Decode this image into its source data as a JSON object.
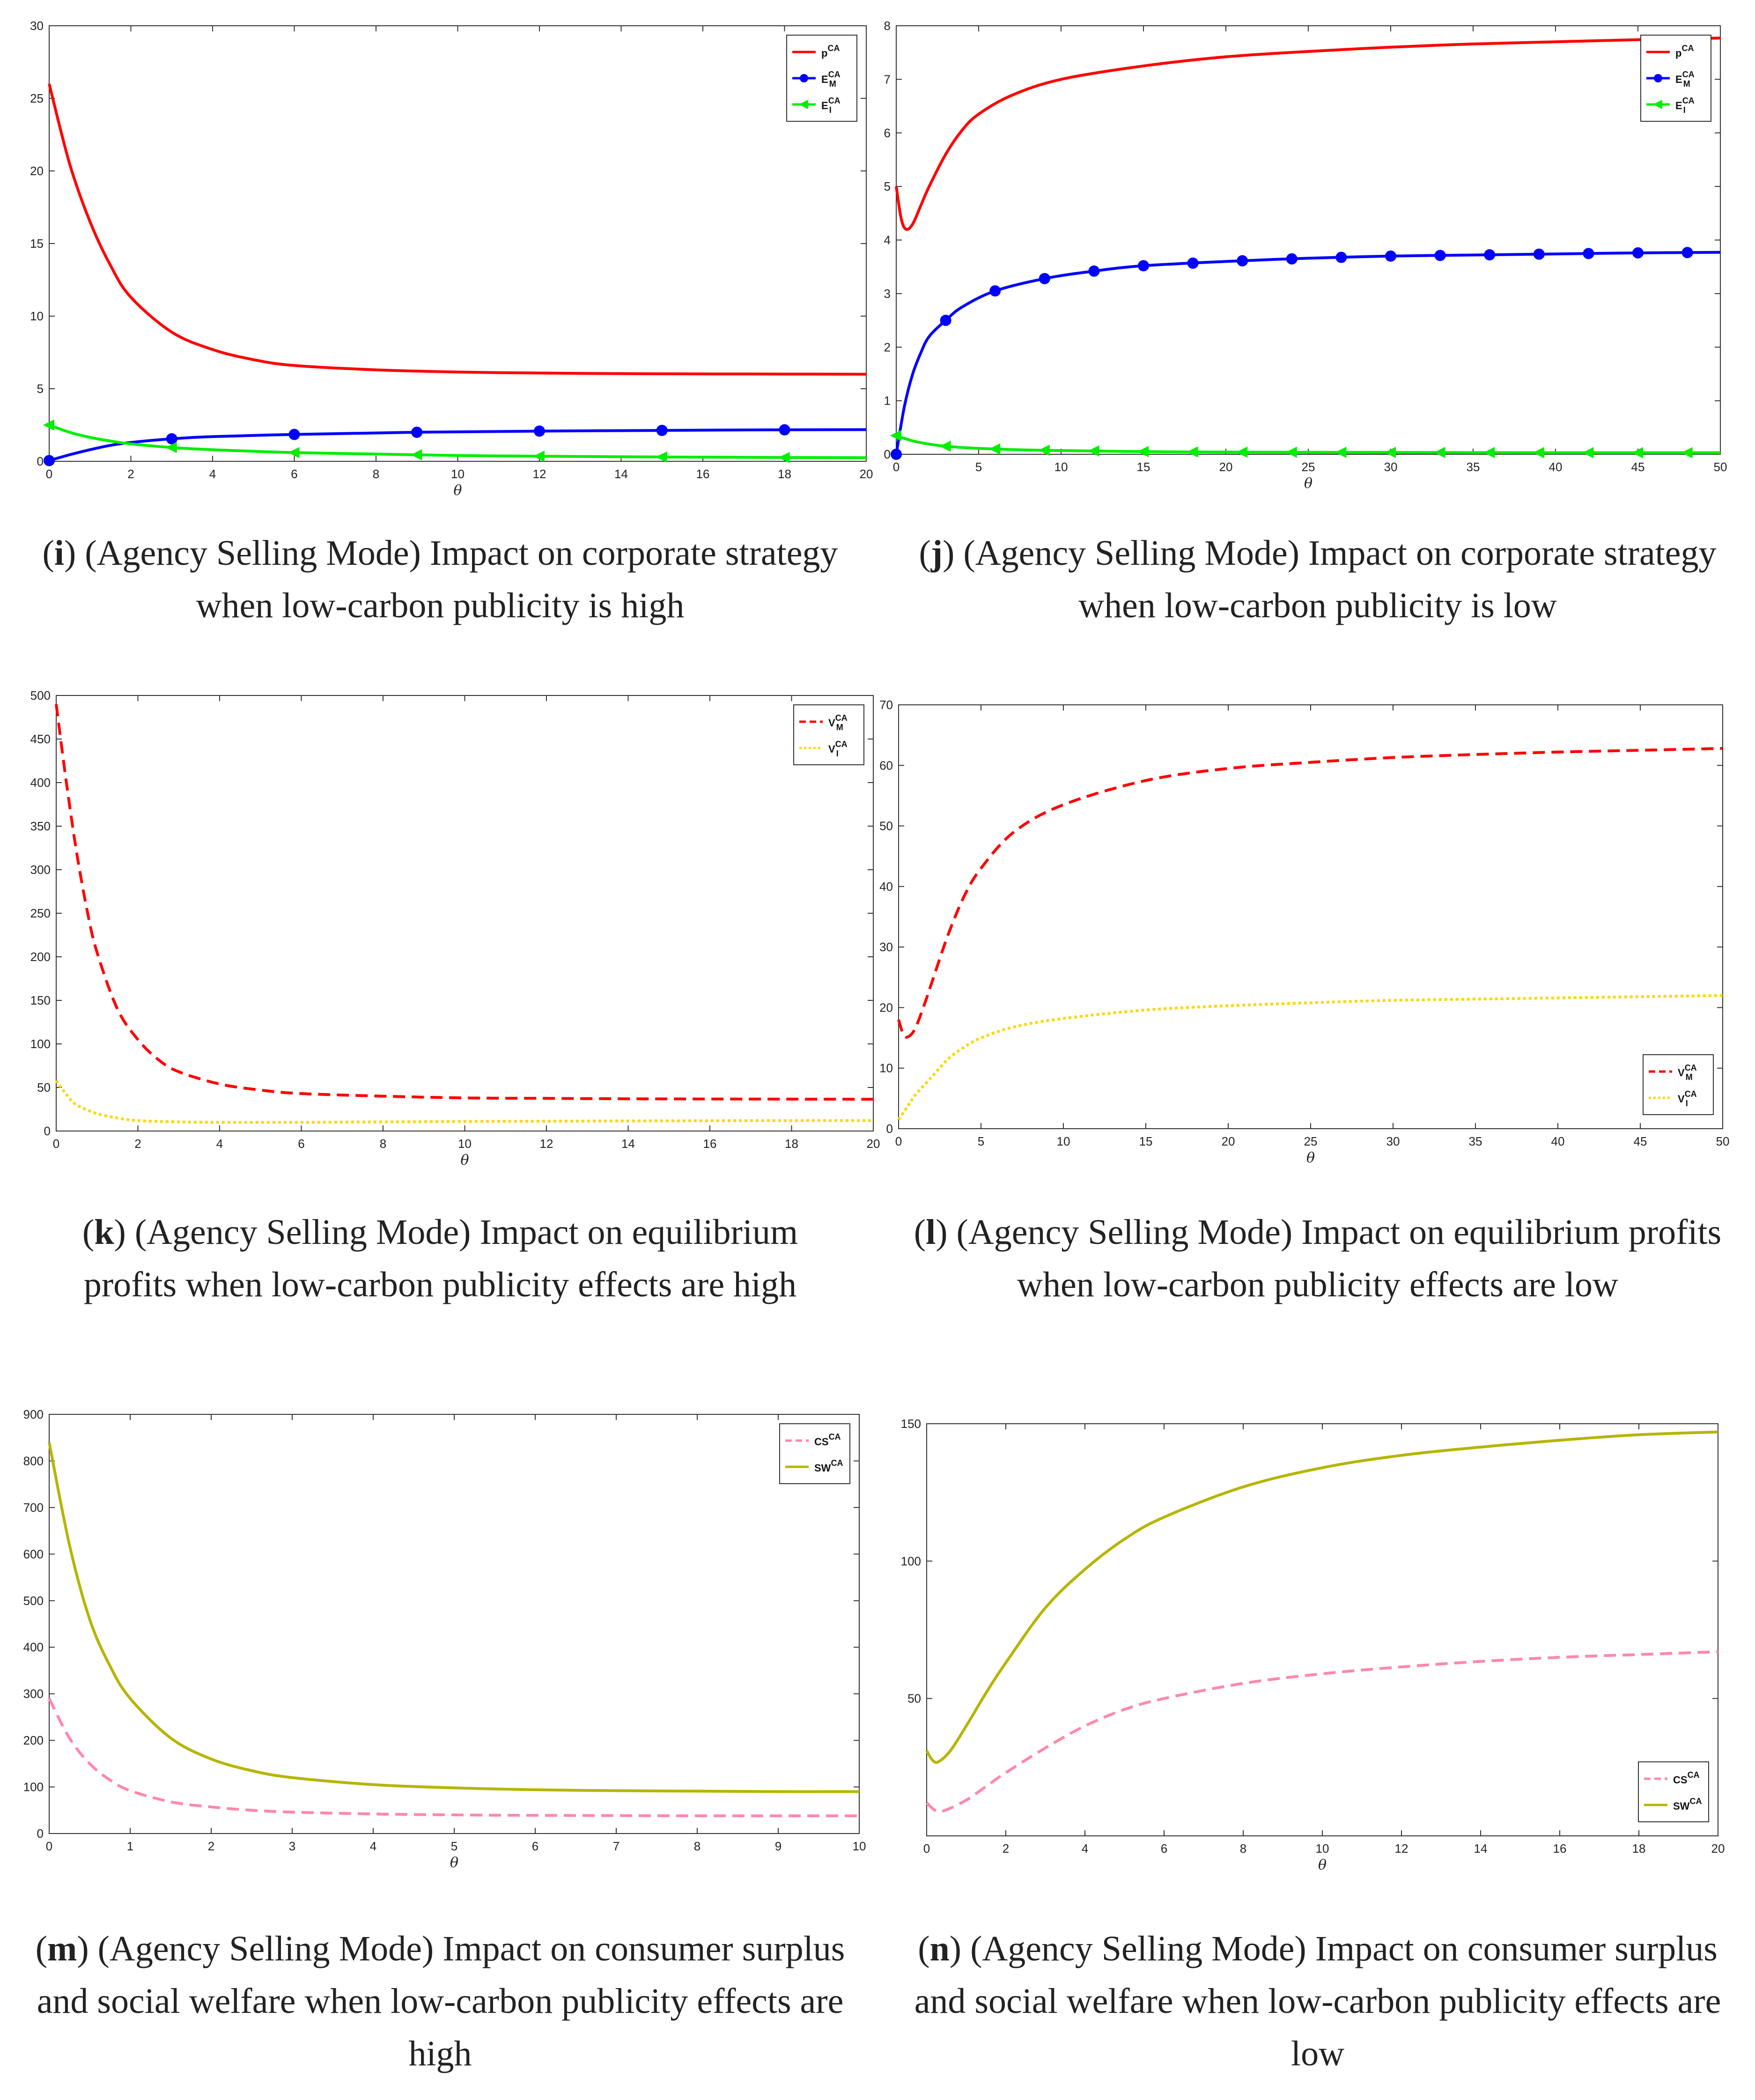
{
  "chart_data": [
    {
      "id": "i",
      "type": "line",
      "caption_letter": "i",
      "caption_text": "(Agency Selling Mode) Impact on corporate strategy when low-carbon publicity is high",
      "xlabel": "θ",
      "xlim": [
        0,
        20
      ],
      "ylim": [
        0,
        30
      ],
      "xticks": [
        0,
        2,
        4,
        6,
        8,
        10,
        12,
        14,
        16,
        18,
        20
      ],
      "yticks": [
        0,
        5,
        10,
        15,
        20,
        25,
        30
      ],
      "legend_position": "top-right",
      "series": [
        {
          "name": "p",
          "sup": "CA",
          "sub": "",
          "color": "#ff0000",
          "dash": "solid",
          "marker": "none",
          "x": [
            0,
            0.5,
            1,
            1.5,
            2,
            3,
            4,
            5,
            6,
            8,
            10,
            12,
            14,
            16,
            18,
            20
          ],
          "y": [
            26,
            20.5,
            16.5,
            13.5,
            11.3,
            8.9,
            7.7,
            7.0,
            6.6,
            6.3,
            6.15,
            6.08,
            6.04,
            6.02,
            6.01,
            6.0
          ]
        },
        {
          "name": "E",
          "sup": "CA",
          "sub": "M",
          "color": "#0000ff",
          "dash": "solid",
          "marker": "circle",
          "x": [
            0,
            0.5,
            1,
            1.5,
            2,
            3,
            4,
            6,
            8,
            9,
            10,
            12,
            15,
            18,
            20
          ],
          "y": [
            0.05,
            0.45,
            0.8,
            1.1,
            1.3,
            1.55,
            1.7,
            1.85,
            1.95,
            2.0,
            2.03,
            2.08,
            2.13,
            2.17,
            2.18
          ],
          "markers_x": [
            0,
            3,
            6,
            9,
            12,
            15,
            18
          ]
        },
        {
          "name": "E",
          "sup": "CA",
          "sub": "I",
          "color": "#00ee00",
          "dash": "solid",
          "marker": "triangle-left",
          "x": [
            0,
            0.5,
            1,
            1.5,
            2,
            3,
            4,
            6,
            8,
            10,
            12,
            15,
            18,
            20
          ],
          "y": [
            2.5,
            2.0,
            1.65,
            1.4,
            1.2,
            0.95,
            0.8,
            0.6,
            0.5,
            0.4,
            0.35,
            0.3,
            0.26,
            0.25
          ],
          "markers_x": [
            0,
            3,
            6,
            9,
            12,
            15,
            18
          ]
        }
      ]
    },
    {
      "id": "j",
      "type": "line",
      "caption_letter": "j",
      "caption_text": "(Agency Selling Mode) Impact on corporate strategy when low-carbon publicity is low",
      "xlabel": "θ",
      "xlim": [
        0,
        50
      ],
      "ylim": [
        0,
        8
      ],
      "xticks": [
        0,
        5,
        10,
        15,
        20,
        25,
        30,
        35,
        40,
        45,
        50
      ],
      "yticks": [
        0,
        1,
        2,
        3,
        4,
        5,
        6,
        7,
        8
      ],
      "legend_position": "top-right",
      "series": [
        {
          "name": "p",
          "sup": "CA",
          "sub": "",
          "color": "#ff0000",
          "dash": "solid",
          "marker": "none",
          "x": [
            0,
            0.3,
            0.6,
            1,
            1.5,
            2,
            3,
            4,
            5,
            7,
            10,
            15,
            20,
            25,
            30,
            35,
            40,
            45,
            50
          ],
          "y": [
            5.0,
            4.4,
            4.2,
            4.3,
            4.65,
            5.0,
            5.6,
            6.05,
            6.35,
            6.7,
            7.0,
            7.25,
            7.42,
            7.52,
            7.6,
            7.66,
            7.7,
            7.74,
            7.77
          ]
        },
        {
          "name": "E",
          "sup": "CA",
          "sub": "M",
          "color": "#0000ff",
          "dash": "solid",
          "marker": "circle",
          "x": [
            0,
            0.5,
            1,
            1.5,
            2,
            3,
            4,
            6,
            9,
            12,
            15,
            20,
            25,
            30,
            35,
            40,
            45,
            50
          ],
          "y": [
            0,
            0.9,
            1.5,
            1.9,
            2.2,
            2.5,
            2.75,
            3.05,
            3.28,
            3.42,
            3.52,
            3.6,
            3.66,
            3.7,
            3.72,
            3.74,
            3.76,
            3.77
          ],
          "markers_x": [
            0,
            3,
            6,
            9,
            12,
            15,
            18,
            21,
            24,
            27,
            30,
            33,
            36,
            39,
            42,
            45,
            48
          ]
        },
        {
          "name": "E",
          "sup": "CA",
          "sub": "I",
          "color": "#00ee00",
          "dash": "solid",
          "marker": "triangle-left",
          "x": [
            0,
            1,
            2,
            3,
            5,
            8,
            10,
            15,
            20,
            30,
            40,
            50
          ],
          "y": [
            0.35,
            0.25,
            0.19,
            0.15,
            0.11,
            0.08,
            0.07,
            0.05,
            0.04,
            0.035,
            0.03,
            0.03
          ],
          "markers_x": [
            0,
            3,
            6,
            9,
            12,
            15,
            18,
            21,
            24,
            27,
            30,
            33,
            36,
            39,
            42,
            45,
            48
          ]
        }
      ]
    },
    {
      "id": "k",
      "type": "line",
      "caption_letter": "k",
      "caption_text": "(Agency Selling Mode) Impact on equilibrium profits when low-carbon publicity effects are high",
      "xlabel": "θ",
      "xlim": [
        0,
        20
      ],
      "ylim": [
        0,
        500
      ],
      "xticks": [
        0,
        2,
        4,
        6,
        8,
        10,
        12,
        14,
        16,
        18,
        20
      ],
      "yticks": [
        0,
        50,
        100,
        150,
        200,
        250,
        300,
        350,
        400,
        450,
        500
      ],
      "legend_position": "top-right",
      "series": [
        {
          "name": "V",
          "sup": "CA",
          "sub": "M",
          "color": "#ff0000",
          "dash": "dashed",
          "marker": "none",
          "x": [
            0,
            0.25,
            0.5,
            0.75,
            1,
            1.5,
            2,
            2.5,
            3,
            4,
            5,
            6,
            8,
            10,
            12,
            14,
            16,
            18,
            20
          ],
          "y": [
            490,
            400,
            320,
            255,
            205,
            140,
            105,
            82,
            68,
            54,
            47,
            43,
            40,
            38,
            37.5,
            37,
            36.8,
            36.6,
            36.5
          ]
        },
        {
          "name": "V",
          "sup": "CA",
          "sub": "I",
          "color": "#ffd700",
          "dash": "dotted",
          "marker": "none",
          "x": [
            0,
            0.25,
            0.5,
            1,
            1.5,
            2,
            3,
            4,
            6,
            8,
            10,
            12,
            14,
            16,
            18,
            20
          ],
          "y": [
            58,
            42,
            30,
            20,
            15,
            12,
            10.5,
            10,
            10,
            10.5,
            11,
            11.3,
            11.6,
            11.8,
            12,
            12
          ]
        }
      ]
    },
    {
      "id": "l",
      "type": "line",
      "caption_letter": "l",
      "caption_text": "(Agency Selling Mode) Impact on equilibrium profits when low-carbon publicity effects are low",
      "xlabel": "θ",
      "xlim": [
        0,
        50
      ],
      "ylim": [
        0,
        70
      ],
      "xticks": [
        0,
        5,
        10,
        15,
        20,
        25,
        30,
        35,
        40,
        45,
        50
      ],
      "yticks": [
        0,
        10,
        20,
        30,
        40,
        50,
        60,
        70
      ],
      "legend_position": "bottom-right",
      "series": [
        {
          "name": "V",
          "sup": "CA",
          "sub": "M",
          "color": "#ff0000",
          "dash": "dashed",
          "marker": "none",
          "x": [
            0,
            0.3,
            0.6,
            1,
            1.5,
            2,
            3,
            4,
            5,
            7,
            10,
            15,
            20,
            25,
            30,
            35,
            40,
            45,
            50
          ],
          "y": [
            18,
            15.5,
            15.2,
            16.5,
            20,
            24,
            32,
            38.5,
            43,
            49,
            53.5,
            57.5,
            59.5,
            60.5,
            61.3,
            61.8,
            62.2,
            62.5,
            62.8
          ]
        },
        {
          "name": "V",
          "sup": "CA",
          "sub": "I",
          "color": "#ffd700",
          "dash": "dotted",
          "marker": "none",
          "x": [
            0,
            0.5,
            1,
            2,
            3,
            4,
            5,
            7,
            10,
            15,
            20,
            25,
            30,
            35,
            40,
            45,
            50
          ],
          "y": [
            1.5,
            3.5,
            5.5,
            8.5,
            11.5,
            13.5,
            15,
            16.8,
            18.2,
            19.6,
            20.3,
            20.8,
            21.2,
            21.4,
            21.6,
            21.8,
            22
          ]
        }
      ]
    },
    {
      "id": "m",
      "type": "line",
      "caption_letter": "m",
      "caption_text": "(Agency Selling Mode) Impact on consumer surplus and social welfare when low-carbon publicity effects are high",
      "xlabel": "θ",
      "xlim": [
        0,
        10
      ],
      "ylim": [
        0,
        900
      ],
      "xticks": [
        0,
        1,
        2,
        3,
        4,
        5,
        6,
        7,
        8,
        9,
        10
      ],
      "yticks": [
        0,
        100,
        200,
        300,
        400,
        500,
        600,
        700,
        800,
        900
      ],
      "legend_position": "top-right",
      "series": [
        {
          "name": "CS",
          "sup": "CA",
          "sub": "",
          "color": "#ff88aa",
          "dash": "dashed",
          "marker": "none",
          "x": [
            0,
            0.25,
            0.5,
            0.75,
            1,
            1.5,
            2,
            2.5,
            3,
            4,
            5,
            6,
            7,
            8,
            9,
            10
          ],
          "y": [
            290,
            205,
            150,
            115,
            92,
            68,
            57,
            50,
            46,
            42,
            40,
            39,
            38.5,
            38,
            38,
            38
          ]
        },
        {
          "name": "SW",
          "sup": "CA",
          "sub": "",
          "color": "#b5b500",
          "dash": "solid",
          "marker": "none",
          "x": [
            0,
            0.25,
            0.5,
            0.75,
            1,
            1.5,
            2,
            2.5,
            3,
            4,
            5,
            6,
            7,
            8,
            9,
            10
          ],
          "y": [
            840,
            620,
            460,
            360,
            290,
            205,
            160,
            135,
            120,
            105,
            98,
            94,
            92,
            91,
            90,
            90
          ]
        }
      ]
    },
    {
      "id": "n",
      "type": "line",
      "caption_letter": "n",
      "caption_text": "(Agency Selling Mode) Impact on consumer surplus and social welfare when low-carbon publicity effects are low",
      "xlabel": "θ",
      "xlim": [
        0,
        20
      ],
      "ylim": [
        0,
        150
      ],
      "xticks": [
        0,
        2,
        4,
        6,
        8,
        10,
        12,
        14,
        16,
        18,
        20
      ],
      "yticks": [
        50,
        100,
        150
      ],
      "legend_position": "bottom-right",
      "series": [
        {
          "name": "CS",
          "sup": "CA",
          "sub": "",
          "color": "#ff88aa",
          "dash": "dashed",
          "marker": "none",
          "x": [
            0,
            0.25,
            0.5,
            1,
            1.5,
            2,
            3,
            4,
            5,
            6,
            8,
            10,
            12,
            14,
            16,
            18,
            20
          ],
          "y": [
            12,
            9,
            9.5,
            13,
            18,
            23,
            32,
            40,
            46,
            50,
            55.5,
            59,
            61.5,
            63.5,
            65,
            66,
            67
          ]
        },
        {
          "name": "SW",
          "sup": "CA",
          "sub": "",
          "color": "#b5b500",
          "dash": "solid",
          "marker": "none",
          "x": [
            0,
            0.15,
            0.3,
            0.6,
            1,
            1.5,
            2,
            3,
            4,
            5,
            6,
            8,
            10,
            12,
            14,
            16,
            18,
            20
          ],
          "y": [
            31,
            27.5,
            27,
            31,
            40,
            52,
            63,
            83,
            97,
            108,
            116,
            127,
            134,
            138.5,
            141.5,
            144,
            146,
            147
          ]
        }
      ]
    }
  ]
}
